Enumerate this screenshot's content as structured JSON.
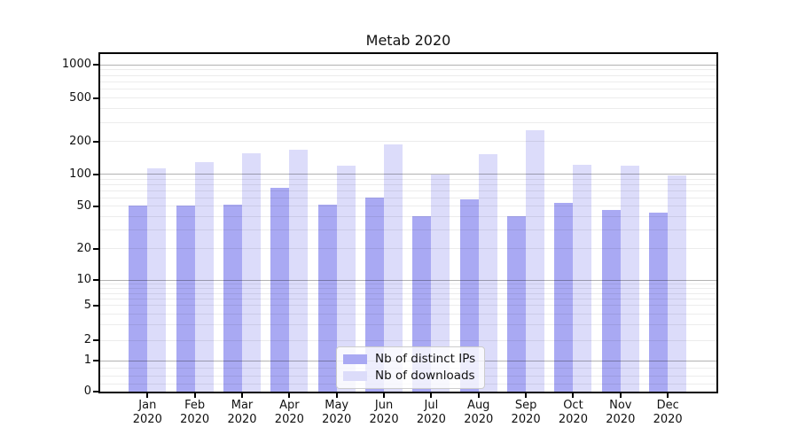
{
  "chart_data": {
    "type": "bar",
    "title": "Metab 2020",
    "yscale": "symlog",
    "ylim": [
      0,
      1100
    ],
    "grid": true,
    "legend_position": "lower center",
    "y_ticks": [
      0,
      1,
      2,
      5,
      10,
      20,
      50,
      100,
      200,
      500,
      1000
    ],
    "categories": [
      "Jan 2020",
      "Feb 2020",
      "Mar 2020",
      "Apr 2020",
      "May 2020",
      "Jun 2020",
      "Jul 2020",
      "Aug 2020",
      "Sep 2020",
      "Oct 2020",
      "Nov 2020",
      "Dec 2020"
    ],
    "months": [
      "Jan",
      "Feb",
      "Mar",
      "Apr",
      "May",
      "Jun",
      "Jul",
      "Aug",
      "Sep",
      "Oct",
      "Nov",
      "Dec"
    ],
    "year_line": "2020",
    "series": [
      {
        "name": "Nb of distinct IPs",
        "color": "#a9a9f3",
        "values": [
          51,
          51,
          52,
          75,
          52,
          60,
          40,
          58,
          40,
          54,
          46,
          43
        ]
      },
      {
        "name": "Nb of downloads",
        "color": "#dcdcfa",
        "values": [
          113,
          130,
          156,
          170,
          121,
          190,
          100,
          152,
          256,
          122,
          119,
          97
        ]
      }
    ],
    "colors": {
      "grid_major": "#b3b3b3",
      "grid_minor": "#e9e9e9",
      "axis": "#000000",
      "legend_border": "#cccccc"
    }
  }
}
